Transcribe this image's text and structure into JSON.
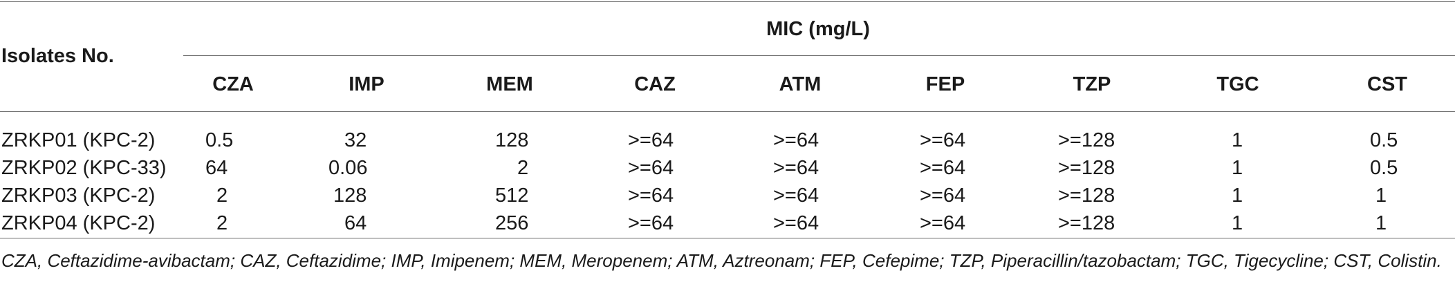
{
  "table": {
    "header": {
      "row_header": "Isolates No.",
      "group_header": "MIC (mg/L)",
      "columns": [
        "CZA",
        "IMP",
        "MEM",
        "CAZ",
        "ATM",
        "FEP",
        "TZP",
        "TGC",
        "CST"
      ]
    },
    "rows": [
      {
        "isolate": "ZRKP01 (KPC-2)",
        "values": [
          "0.5",
          "32",
          "128",
          ">=64",
          ">=64",
          ">=64",
          ">=128",
          "1",
          "0.5"
        ]
      },
      {
        "isolate": "ZRKP02 (KPC-33)",
        "values": [
          "64",
          "0.06",
          "2",
          ">=64",
          ">=64",
          ">=64",
          ">=128",
          "1",
          "0.5"
        ]
      },
      {
        "isolate": "ZRKP03 (KPC-2)",
        "values": [
          "2",
          "128",
          "512",
          ">=64",
          ">=64",
          ">=64",
          ">=128",
          "1",
          "1"
        ]
      },
      {
        "isolate": "ZRKP04 (KPC-2)",
        "values": [
          "2",
          "64",
          "256",
          ">=64",
          ">=64",
          ">=64",
          ">=128",
          "1",
          "1"
        ]
      }
    ],
    "footnote": "CZA, Ceftazidime-avibactam; CAZ, Ceftazidime; IMP, Imipenem; MEM, Meropenem; ATM, Aztreonam; FEP, Cefepime; TZP, Piperacillin/tazobactam; TGC, Tigecycline; CST, Colistin."
  }
}
